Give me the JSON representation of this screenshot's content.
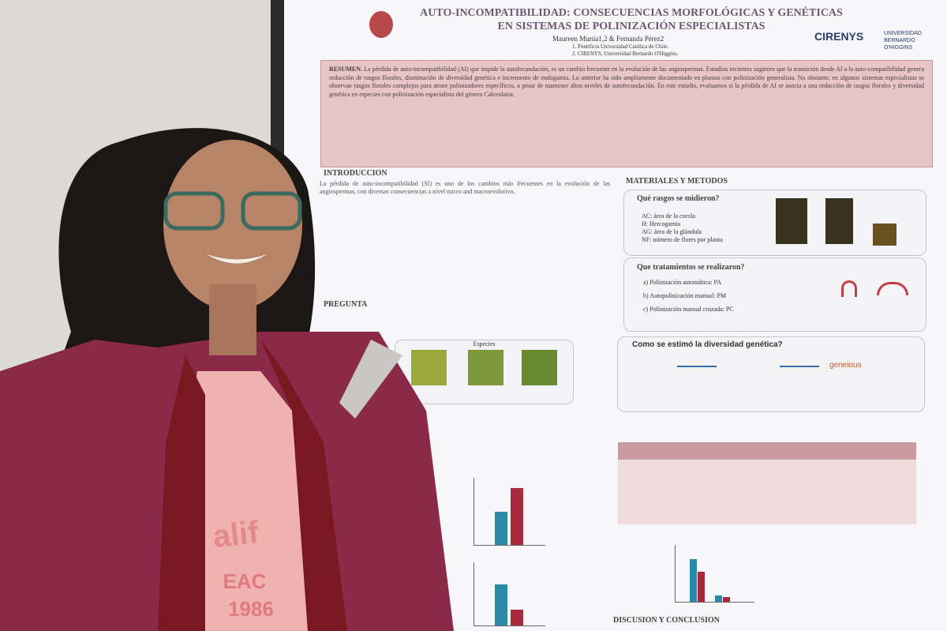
{
  "poster": {
    "title": [
      "AUTO-INCOMPATIBILIDAD: CONSECUENCIAS MORFOLÓGICAS Y GENÉTICAS",
      "EN SISTEMAS DE POLINIZACIÓN ESPECIALISTAS"
    ],
    "authors": "Maureen Murúa1,2 & Fernanda Pérez2",
    "affiliations": [
      "1. Pontificia Universidad Católica de Chile.",
      "2. CIRENYS, Universidad Bernardo O'Higgins."
    ],
    "logos": [
      "CIRENYS",
      "UNIVERSIDAD BERNARDO O'HIGGINS"
    ],
    "summary_label": "RESUMEN.",
    "summary": "La pérdida de auto-incompatibilidad (AI) que impide la autofecundación, es un cambio frecuente en la evolución de las angiospermas. Estudios recientes sugieren que la transición desde AI a la auto-compatibilidad genera reducción de rasgos florales, disminución de diversidad genética e incremento de endogamia. Lo anterior ha sido ampliamente documentado en plantas con polinización generalista. No obstante, en algunos sistemas especialistas se observan rasgos florales complejos para atraer polinizadores específicos, a pesar de mantener altos niveles de autofecundación. En este estudio, evaluamos si la pérdida de AI se asocia a una reducción de rasgos florales y diversidad genética en especies con polinización especialista del género Calceolaria.",
    "sections": {
      "intro": "INTRODUCCION",
      "question": "PREGUNTA",
      "methods": "MATERIALES Y METODOS",
      "discussion": "DISCUSION Y CONCLUSION"
    },
    "intro_text": "La pérdida de auto-incompatibilidad (SI) es uno de los cambios más frecuentes en la evolución de las angiospermas, con diversas consecuencias a nivel micro and macroevolutivo.",
    "species_label": "Especies",
    "traits": {
      "heading": "Qué rasgos se midieron?",
      "items": [
        "AC: área de la corola",
        "H: Hercogamia",
        "AG: área de la glándula",
        "NF: número de flores por planta"
      ]
    },
    "treatments": {
      "heading": "Que tratamientos se realizaron?",
      "items": [
        "a) Polinización automática: PA",
        "b) Autopolinización manual: PM",
        "c) Polinización manual cruzada: PC"
      ]
    },
    "genetics": {
      "heading": "Como se estimó la diversidad genética?",
      "software": "geneious"
    }
  },
  "shirt": [
    "alif",
    "EAC",
    "1986"
  ]
}
